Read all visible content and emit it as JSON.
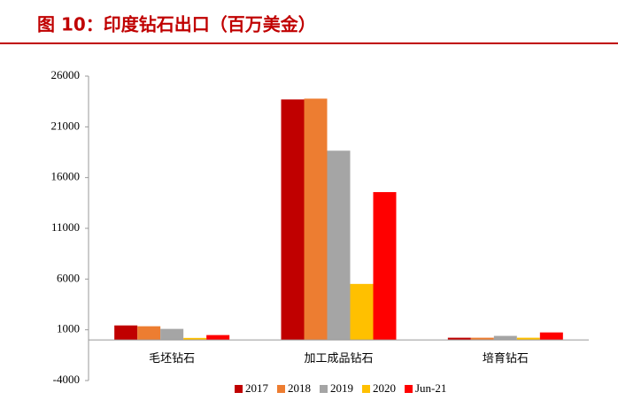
{
  "chart_data": {
    "type": "bar",
    "title": "图 10：印度钻石出口（百万美金）",
    "categories": [
      "毛坯钻石",
      "加工成品钻石",
      "培育钻石"
    ],
    "series": [
      {
        "name": "2017",
        "color": "#c00000",
        "values": [
          1430,
          23700,
          220
        ]
      },
      {
        "name": "2018",
        "color": "#ed7d31",
        "values": [
          1350,
          23780,
          220
        ]
      },
      {
        "name": "2019",
        "color": "#a5a5a5",
        "values": [
          1090,
          18650,
          400
        ]
      },
      {
        "name": "2020",
        "color": "#ffc000",
        "values": [
          200,
          5520,
          220
        ]
      },
      {
        "name": "Jun-21",
        "color": "#ff0000",
        "values": [
          480,
          14570,
          740
        ]
      }
    ],
    "ylim": [
      -4000,
      26000
    ],
    "yticks": [
      -4000,
      1000,
      6000,
      11000,
      16000,
      21000,
      26000
    ],
    "grid": false,
    "legend": "bottom"
  }
}
